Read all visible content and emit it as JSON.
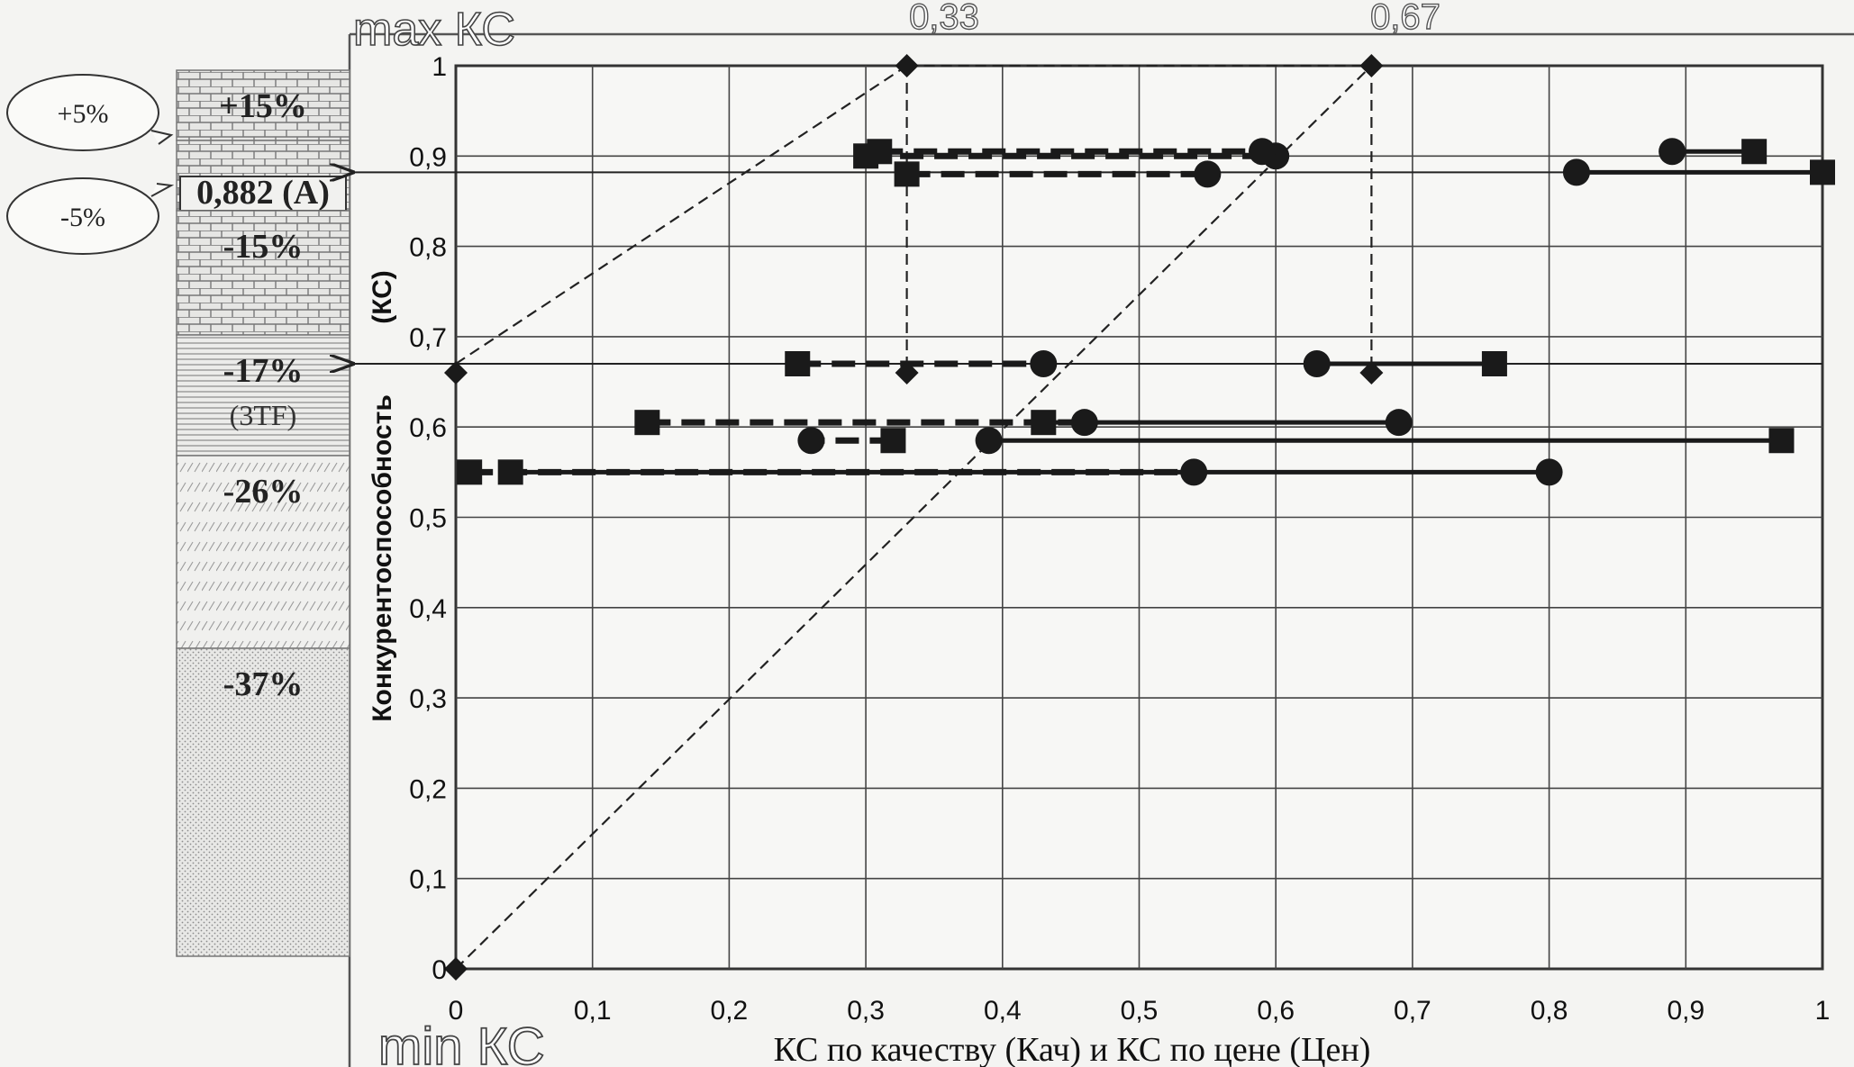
{
  "chart_data": {
    "type": "scatter",
    "xlabel": "КС по качеству (Кач) и КС по цене (Цен)",
    "ylabel": "Конкурентоспособность",
    "ylabel_unit": "(КС)",
    "xlim": [
      0,
      1
    ],
    "ylim": [
      0,
      1
    ],
    "x_ticks": [
      "0",
      "0,1",
      "0,2",
      "0,3",
      "0,4",
      "0,5",
      "0,6",
      "0,7",
      "0,8",
      "0,9",
      "1"
    ],
    "y_ticks": [
      "0",
      "0,1",
      "0,2",
      "0,3",
      "0,4",
      "0,5",
      "0,6",
      "0,7",
      "0,8",
      "0,9",
      "1"
    ],
    "grid": true,
    "top_labels": [
      "max КС",
      "0,33",
      "0,67"
    ],
    "bottom_left_label": "min КС",
    "reference_lines": [
      {
        "points": [
          [
            0,
            0
          ],
          [
            0.67,
            1
          ]
        ],
        "style": "dashed"
      },
      {
        "points": [
          [
            0,
            0.67
          ],
          [
            0.33,
            1
          ]
        ],
        "style": "dashed"
      },
      {
        "points": [
          [
            0.33,
            1
          ],
          [
            0.33,
            0.66
          ]
        ],
        "style": "dashed"
      },
      {
        "points": [
          [
            0.67,
            1
          ],
          [
            0.67,
            0.66
          ]
        ],
        "style": "dashed"
      },
      {
        "points": [
          [
            0.33,
            1
          ],
          [
            0.67,
            1
          ]
        ],
        "style": "dashed"
      }
    ],
    "diamond_markers": [
      [
        0,
        0
      ],
      [
        0,
        0.66
      ],
      [
        0.33,
        1
      ],
      [
        0.67,
        1
      ],
      [
        0.33,
        0.66
      ],
      [
        0.67,
        0.66
      ]
    ],
    "level_arrows": [
      0.882,
      0.67
    ],
    "segments": [
      {
        "sq": 0.3,
        "ci": 0.6,
        "y": 0.9,
        "style": "dashed"
      },
      {
        "sq": 0.31,
        "ci": 0.59,
        "y": 0.905,
        "style": "dashed"
      },
      {
        "sq": 0.33,
        "ci": 0.55,
        "y": 0.88,
        "style": "dashed"
      },
      {
        "sq": 1.0,
        "ci": 0.82,
        "y": 0.882,
        "style": "solid"
      },
      {
        "sq": 0.95,
        "ci": 0.89,
        "y": 0.905,
        "style": "solid"
      },
      {
        "sq": 0.25,
        "ci": 0.43,
        "y": 0.67,
        "style": "dashed"
      },
      {
        "sq": 0.76,
        "ci": 0.63,
        "y": 0.67,
        "style": "solid"
      },
      {
        "sq": 0.14,
        "ci": 0.46,
        "y": 0.605,
        "style": "dashed"
      },
      {
        "sq": 0.43,
        "ci": 0.69,
        "y": 0.605,
        "style": "solid"
      },
      {
        "sq": 0.32,
        "ci": 0.26,
        "y": 0.585,
        "style": "dashed"
      },
      {
        "sq": 0.97,
        "ci": 0.39,
        "y": 0.585,
        "style": "solid"
      },
      {
        "sq": 0.01,
        "ci": 0.54,
        "y": 0.55,
        "style": "dashed"
      },
      {
        "sq": 0.04,
        "ci": 0.8,
        "y": 0.55,
        "style": "solid"
      }
    ]
  },
  "side_scale": {
    "bubbles": [
      "+5%",
      "-5%"
    ],
    "bands": [
      {
        "label": "+15%",
        "pattern": "brick"
      },
      {
        "label": "0,882 (A)",
        "pattern": "brick"
      },
      {
        "label": "-15%",
        "pattern": "brick"
      },
      {
        "label": "-17%",
        "sublabel": "(3TF)",
        "pattern": "lines"
      },
      {
        "label": "-26%",
        "pattern": "hatch"
      },
      {
        "label": "-37%",
        "pattern": "dots"
      }
    ]
  }
}
